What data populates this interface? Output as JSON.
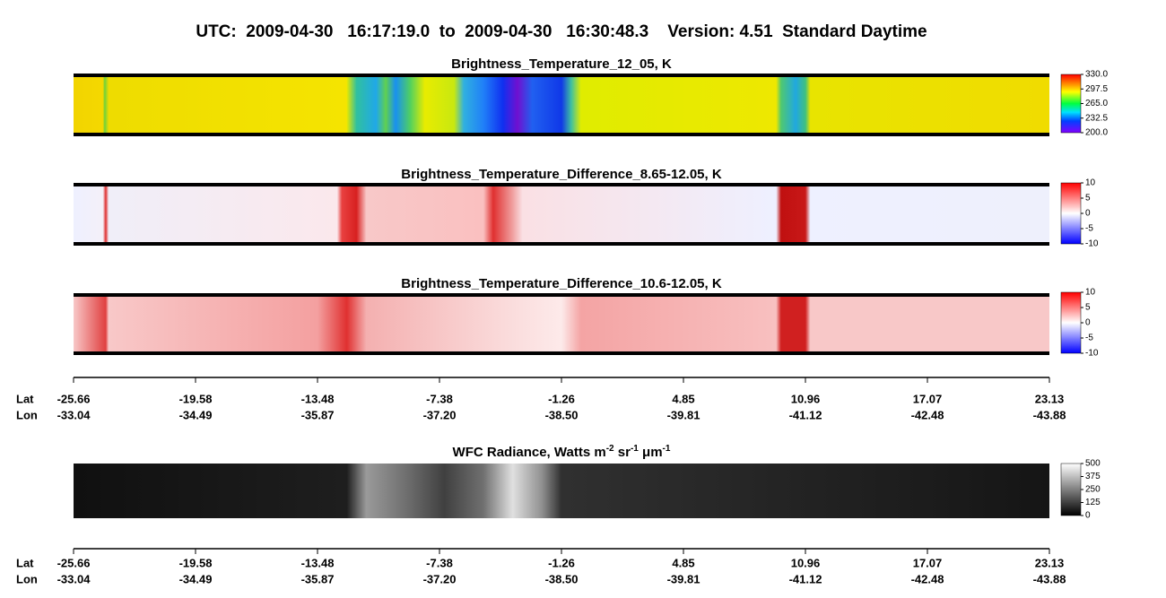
{
  "title": "UTC:  2009-04-30   16:17:19.0  to  2009-04-30   16:30:48.3    Version: 4.51  Standard Daytime",
  "panels": [
    {
      "title": "Brightness_Temperature_12_05, K",
      "colorbar": {
        "lim": [
          200,
          330
        ],
        "ticks": [
          {
            "value": 200,
            "label": "200.0"
          },
          {
            "value": 232.5,
            "label": "232.5"
          },
          {
            "value": 265,
            "label": "265.0"
          },
          {
            "value": 297.5,
            "label": "297.5"
          },
          {
            "value": 330,
            "label": "330.0"
          }
        ]
      }
    },
    {
      "title": "Brightness_Temperature_Difference_8.65-12.05, K",
      "colorbar": {
        "lim": [
          -10,
          10
        ],
        "ticks": [
          -10,
          -5,
          0,
          5,
          10
        ]
      }
    },
    {
      "title": "Brightness_Temperature_Difference_10.6-12.05, K",
      "colorbar": {
        "lim": [
          -10,
          10
        ],
        "ticks": [
          -10,
          -5,
          0,
          5,
          10
        ]
      }
    },
    {
      "title_parts": [
        "WFC Radiance, Watts m",
        "-2",
        " sr",
        "-1",
        " μm",
        "-1"
      ],
      "colorbar": {
        "lim": [
          0,
          500
        ],
        "ticks": [
          0,
          125,
          250,
          375,
          500
        ]
      }
    }
  ],
  "axis": {
    "lat_label": "Lat",
    "lon_label": "Lon",
    "lat": [
      "-25.66",
      "-19.58",
      "-13.48",
      "-7.38",
      "-1.26",
      "4.85",
      "10.96",
      "17.07",
      "23.13"
    ],
    "lon": [
      "-33.04",
      "-34.49",
      "-35.87",
      "-37.20",
      "-38.50",
      "-39.81",
      "-41.12",
      "-42.48",
      "-43.88"
    ]
  }
}
